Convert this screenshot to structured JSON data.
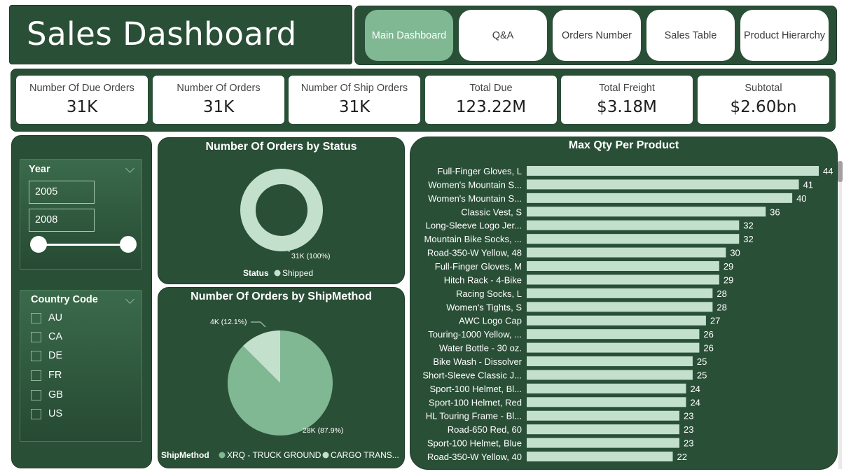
{
  "title": "Sales Dashboard",
  "nav": [
    {
      "label": "Main Dashboard",
      "active": true
    },
    {
      "label": "Q&A",
      "active": false
    },
    {
      "label": "Orders Number",
      "active": false
    },
    {
      "label": "Sales Table",
      "active": false
    },
    {
      "label": "Product Hierarchy",
      "active": false
    }
  ],
  "kpis": [
    {
      "label": "Number Of Due Orders",
      "value": "31K"
    },
    {
      "label": "Number Of Orders",
      "value": "31K"
    },
    {
      "label": "Number Of Ship Orders",
      "value": "31K"
    },
    {
      "label": "Total Due",
      "value": "123.22M"
    },
    {
      "label": "Total Freight",
      "value": "$3.18M"
    },
    {
      "label": "Subtotal",
      "value": "$2.60bn"
    }
  ],
  "filters": {
    "year": {
      "title": "Year",
      "from": "2005",
      "to": "2008"
    },
    "country": {
      "title": "Country Code",
      "options": [
        "AU",
        "CA",
        "DE",
        "FR",
        "GB",
        "US"
      ]
    }
  },
  "colors": {
    "panel": "#2a4f37",
    "accent": "#7fb892",
    "bar": "#c3e0cc",
    "pie_main": "#7fb892",
    "pie_secondary": "#c3e0cc"
  },
  "chart_data": [
    {
      "type": "pie",
      "subtype": "donut",
      "title": "Number Of Orders by Status",
      "legend_title": "Status",
      "categories": [
        "Shipped"
      ],
      "values": [
        31000
      ],
      "labels": [
        "31K (100%)"
      ],
      "colors": [
        "#c3e0cc"
      ]
    },
    {
      "type": "pie",
      "title": "Number Of Orders by ShipMethod",
      "legend_title": "ShipMethod",
      "categories": [
        "XRQ - TRUCK GROUND",
        "CARGO TRANS..."
      ],
      "values": [
        28000,
        4000
      ],
      "labels": [
        "28K (87.9%)",
        "4K (12.1%)"
      ],
      "colors": [
        "#7fb892",
        "#c3e0cc"
      ]
    },
    {
      "type": "bar",
      "orientation": "horizontal",
      "title": "Max Qty Per Product",
      "categories": [
        "Full-Finger Gloves, L",
        "Women's Mountain S...",
        "Women's Mountain S...",
        "Classic Vest, S",
        "Long-Sleeve Logo Jer...",
        "Mountain Bike Socks, ...",
        "Road-350-W Yellow, 48",
        "Full-Finger Gloves, M",
        "Hitch Rack - 4-Bike",
        "Racing Socks, L",
        "Women's Tights, S",
        "AWC Logo Cap",
        "Touring-1000 Yellow, ...",
        "Water Bottle - 30 oz.",
        "Bike Wash - Dissolver",
        "Short-Sleeve Classic J...",
        "Sport-100 Helmet, Bl...",
        "Sport-100 Helmet, Red",
        "HL Touring Frame - Bl...",
        "Road-650 Red, 60",
        "Sport-100 Helmet, Blue",
        "Road-350-W Yellow, 40"
      ],
      "values": [
        44,
        41,
        40,
        36,
        32,
        32,
        30,
        29,
        29,
        28,
        28,
        27,
        26,
        26,
        25,
        25,
        24,
        24,
        23,
        23,
        23,
        22
      ],
      "xlim": [
        0,
        44
      ],
      "color": "#c3e0cc"
    }
  ]
}
